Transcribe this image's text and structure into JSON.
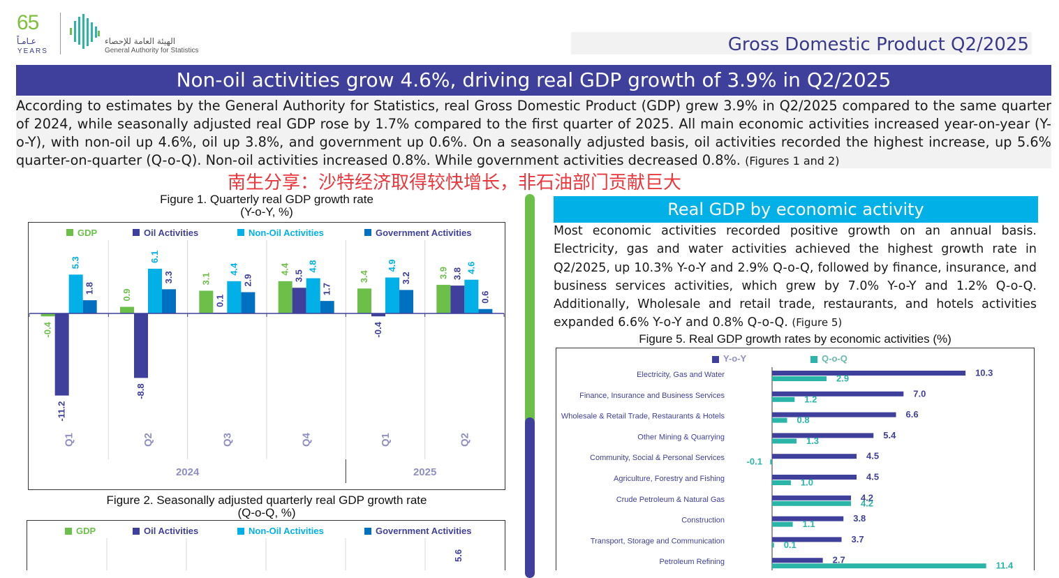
{
  "logo": {
    "number": "65",
    "arabic": "عـامـاً",
    "years": "YEARS"
  },
  "org": {
    "arabic": "الهيئة العامة للإحصاء",
    "english": "General Authority for Statistics"
  },
  "report_title": "Gross Domestic Product Q2/2025",
  "headline": "Non-oil activities grow 4.6%, driving real GDP growth of 3.9% in Q2/2025",
  "intro": {
    "text": "According to estimates by the General Authority for Statistics, real Gross Domestic Product (GDP) grew 3.9% in Q2/2025 compared to the same quarter of 2024, while seasonally adjusted real GDP rose by 1.7% compared to the first quarter of 2025. All main economic activities increased year-on-year (Y-o-Y), with non-oil up 4.6%, oil up 3.8%, and government up 0.6%. On a seasonally adjusted basis, oil activities recorded the highest increase, up 5.6% quarter-on-quarter (Q-o-Q). Non-oil activities increased 0.8%. While government activities decreased 0.8%.",
    "ref": "(Figures 1 and 2)"
  },
  "watermark": "南生分享：沙特经济取得较快增长，非石油部门贡献巨大",
  "colors": {
    "gdp": "#6cc04a",
    "oil": "#3f3f9c",
    "nonoil": "#00b0e6",
    "gov": "#0070c0",
    "qoq": "#2ab5a8",
    "yoy": "#3f3f9c"
  },
  "section": {
    "heading": "Real GDP by economic activity",
    "text": "Most economic activities recorded positive growth on an annual basis. Electricity, gas and water activities achieved the highest growth rate in Q2/2025, up 10.3% Y-o-Y and 2.9% Q-o-Q, followed by finance, insurance, and business services activities, which grew by 7.0% Y-o-Y and 1.2% Q-o-Q. Additionally, Wholesale and retail trade, restaurants, and hotels activities expanded 6.6% Y-o-Y and 0.8% Q-o-Q.",
    "ref": "(Figure 5)"
  },
  "chart_data": [
    {
      "type": "bar",
      "title": "Figure 1. Quarterly real GDP growth rate",
      "subtitle": "(Y-o-Y, %)",
      "categories": [
        "Q1",
        "Q2",
        "Q3",
        "Q4",
        "Q1",
        "Q2"
      ],
      "groups": [
        {
          "label": "2024",
          "span": 4
        },
        {
          "label": "2025",
          "span": 2
        }
      ],
      "series": [
        {
          "name": "GDP",
          "values": [
            -0.4,
            0.9,
            3.1,
            4.4,
            3.4,
            3.9
          ]
        },
        {
          "name": "Oil Activities",
          "values": [
            -11.2,
            -8.8,
            0.1,
            3.5,
            -0.4,
            3.8
          ]
        },
        {
          "name": "Non-Oil Activities",
          "values": [
            5.3,
            6.1,
            4.4,
            4.8,
            4.9,
            4.6
          ]
        },
        {
          "name": "Government Activities",
          "values": [
            1.8,
            3.3,
            2.9,
            1.7,
            3.2,
            0.6
          ]
        }
      ],
      "legend": "top",
      "ylim": [
        -12,
        7
      ]
    },
    {
      "type": "bar",
      "title": "Figure 2. Seasonally adjusted quarterly real GDP growth rate",
      "subtitle": "(Q-o-Q, %)",
      "legend_series": [
        "GDP",
        "Oil Activities",
        "Non-Oil Activities",
        "Government Activities"
      ],
      "visible_values": [
        {
          "series": "Oil Activities",
          "category_index": 5,
          "value": 5.6
        }
      ]
    },
    {
      "type": "bar",
      "orientation": "horizontal",
      "title": "Figure 5. Real GDP growth rates by economic activities (%)",
      "categories": [
        "Electricity, Gas and Water",
        "Finance, Insurance and Business Services",
        "Wholesale & Retail Trade, Restaurants & Hotels",
        "Other Mining & Quarrying",
        "Community, Social & Personal Services",
        "Agriculture, Forestry and Fishing",
        "Crude Petroleum & Natural Gas",
        "Construction",
        "Transport, Storage and Communication",
        "Petroleum Refining"
      ],
      "series": [
        {
          "name": "Y-o-Y",
          "values": [
            10.3,
            7.0,
            6.6,
            5.4,
            4.5,
            4.5,
            4.2,
            3.8,
            3.7,
            2.7
          ]
        },
        {
          "name": "Q-o-Q",
          "values": [
            2.9,
            1.2,
            0.8,
            1.3,
            -0.1,
            1.0,
            4.2,
            1.1,
            0.1,
            11.4
          ]
        }
      ],
      "legend": "top-left"
    }
  ]
}
